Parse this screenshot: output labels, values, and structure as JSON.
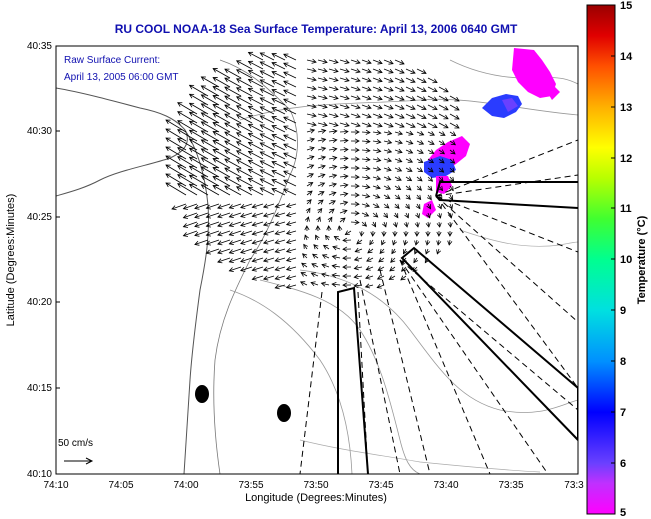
{
  "title": "RU COOL  NOAA-18  Sea Surface Temperature:  April 13, 2006 0640 GMT",
  "annotation": {
    "line1": "Raw Surface Current:",
    "line2": "April 13, 2005 06:00 GMT"
  },
  "axes": {
    "xlabel": "Longitude (Degrees:Minutes)",
    "ylabel": "Latitude (Degrees:Minutes)",
    "xticks": [
      "74:10",
      "74:05",
      "74:00",
      "73:55",
      "73:50",
      "73:45",
      "73:40",
      "73:35",
      "73:3"
    ],
    "yticks": [
      "40:35",
      "40:30",
      "40:25",
      "40:20",
      "40:15",
      "40:10"
    ]
  },
  "scale": {
    "label": "50 cm/s"
  },
  "colorbar": {
    "label": "Temperature (°C)",
    "ticks": [
      "15",
      "14",
      "13",
      "12",
      "11",
      "10",
      "9",
      "8",
      "7",
      "6",
      "5"
    ],
    "colors": [
      "#ff00ff",
      "#7a3cff",
      "#0000ff",
      "#0080ff",
      "#00d8ff",
      "#00ffb0",
      "#40ff40",
      "#b0ff00",
      "#ffff00",
      "#ffb000",
      "#ff5000",
      "#e00000",
      "#a00000"
    ]
  },
  "sst_patches_color": {
    "warm": "#ff00ff",
    "cool": "#2a3cff"
  }
}
